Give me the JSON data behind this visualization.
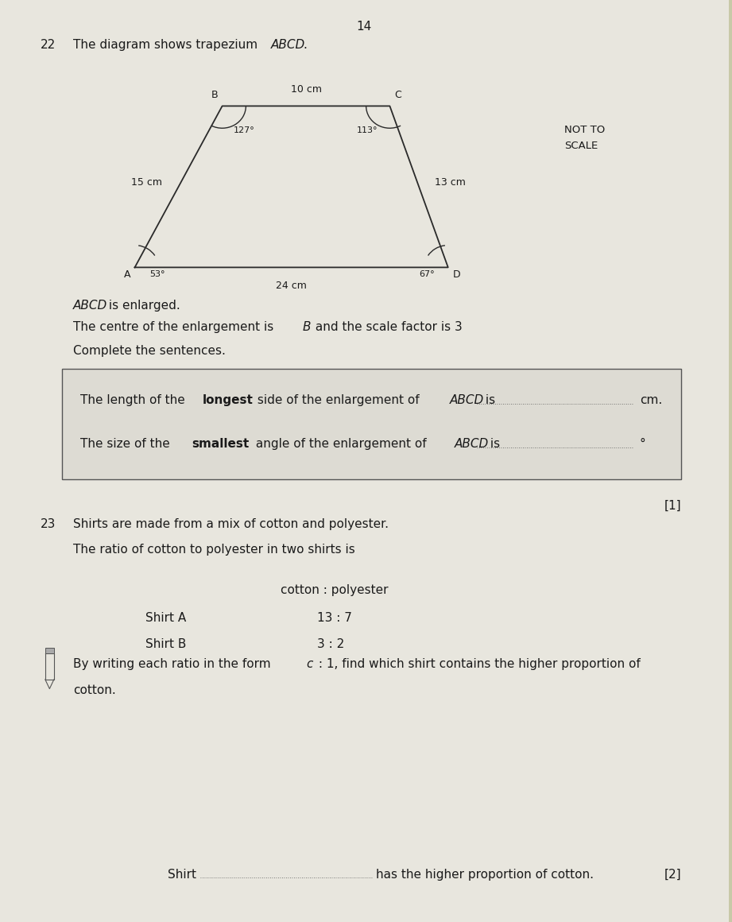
{
  "page_number": "14",
  "bg_color": "#c8c9a8",
  "paper_color": "#d6d4cc",
  "center_color": "#e8e6de",
  "text_color": "#1a1a1a",
  "box_bg": "#dddbd3",
  "q22_number": "22",
  "q22_intro_plain": "The diagram shows trapezium ",
  "q22_intro_italic": "ABCD",
  "q22_intro_end": ".",
  "not_to_scale_1": "NOT TO",
  "not_to_scale_2": "SCALE",
  "label_BC": "10 cm",
  "label_AB": "15 cm",
  "label_CD": "13 cm",
  "label_AD": "24 cm",
  "angle_B": "127°",
  "angle_C": "113°",
  "angle_A": "53°",
  "angle_D": "67°",
  "vertex_A": "A",
  "vertex_B": "B",
  "vertex_C": "C",
  "vertex_D": "D",
  "abcd_italic": "ABCD",
  "enlarged_text": " is enlarged.",
  "centre_text1": "The centre of the enlargement is ",
  "centre_B": "B",
  "centre_text2": " and the scale factor is 3",
  "complete_text": "Complete the sentences.",
  "box1_pre": "The length of the ",
  "box1_bold": "longest",
  "box1_post": " side of the enlargement of ",
  "box1_italic": "ABCD",
  "box1_end": " is",
  "box1_unit": "cm.",
  "box2_pre": "The size of the ",
  "box2_bold": "smallest",
  "box2_post": " angle of the enlargement of ",
  "box2_italic": "ABCD",
  "box2_end": " is",
  "box2_unit": "°",
  "mark1": "[1]",
  "q23_number": "23",
  "q23_line1": "Shirts are made from a mix of cotton and polyester.",
  "q23_line2": "The ratio of cotton to polyester in two shirts is",
  "col_header": "cotton : polyester",
  "shirt_a": "Shirt A",
  "ratio_a": "13 : 7",
  "shirt_b": "Shirt B",
  "ratio_b": "3 : 2",
  "by_writing_pre": "By writing each ratio in the form ",
  "by_writing_c": "c",
  "by_writing_post": " : 1, find which shirt contains the higher proportion of",
  "cotton_text": "cotton.",
  "shirt_label": "Shirt",
  "answer_post": "has the higher proportion of cotton.",
  "mark2": "[2]"
}
